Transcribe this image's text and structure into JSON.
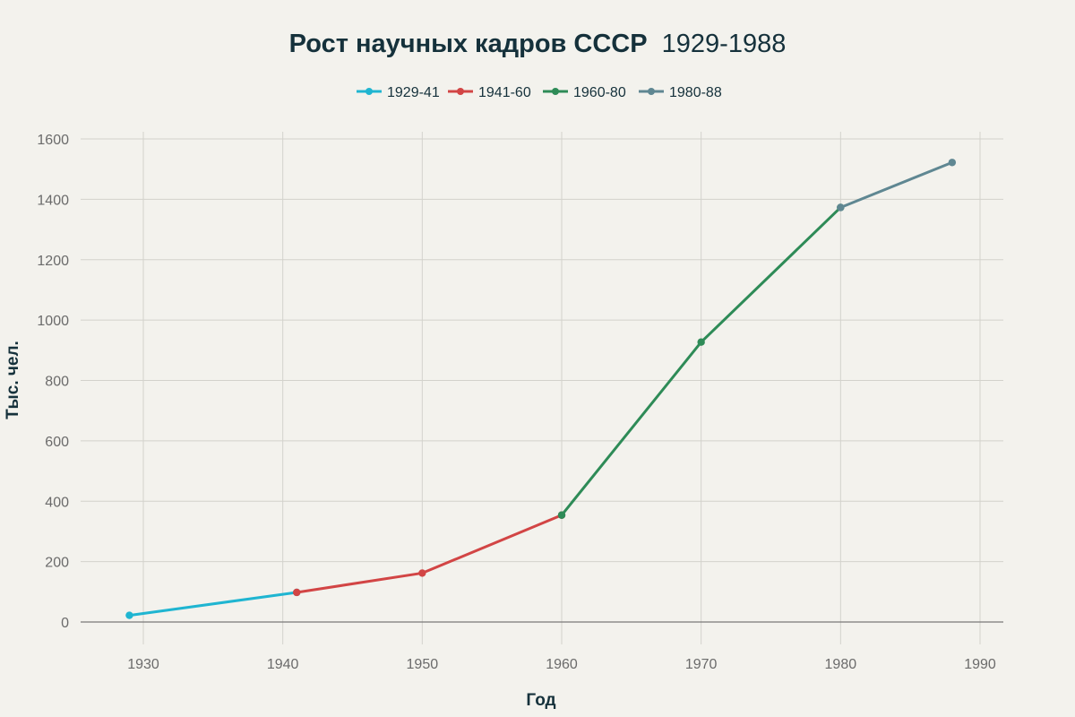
{
  "chart_data": {
    "type": "line",
    "title": "Рост научных кадров СССР",
    "subtitle": "1929-1988",
    "xlabel": "Год",
    "ylabel": "Тыс. чел.",
    "xlim": [
      1925,
      1991
    ],
    "ylim": [
      0,
      1600
    ],
    "xticks": [
      1930,
      1940,
      1950,
      1960,
      1970,
      1980,
      1990
    ],
    "yticks": [
      0,
      200,
      400,
      600,
      800,
      1000,
      1200,
      1400,
      1600
    ],
    "grid": true,
    "legend_position": "top-center",
    "series": [
      {
        "name": "1929-41",
        "color": "#1fb5d1",
        "x": [
          1929,
          1941
        ],
        "y": [
          22,
          98
        ]
      },
      {
        "name": "1941-60",
        "color": "#d24545",
        "x": [
          1941,
          1950,
          1960
        ],
        "y": [
          98,
          162,
          354
        ]
      },
      {
        "name": "1960-80",
        "color": "#2e8b57",
        "x": [
          1960,
          1970,
          1980
        ],
        "y": [
          354,
          927,
          1373
        ]
      },
      {
        "name": "1980-88",
        "color": "#5f8792",
        "x": [
          1980,
          1988
        ],
        "y": [
          1373,
          1522
        ]
      }
    ]
  }
}
